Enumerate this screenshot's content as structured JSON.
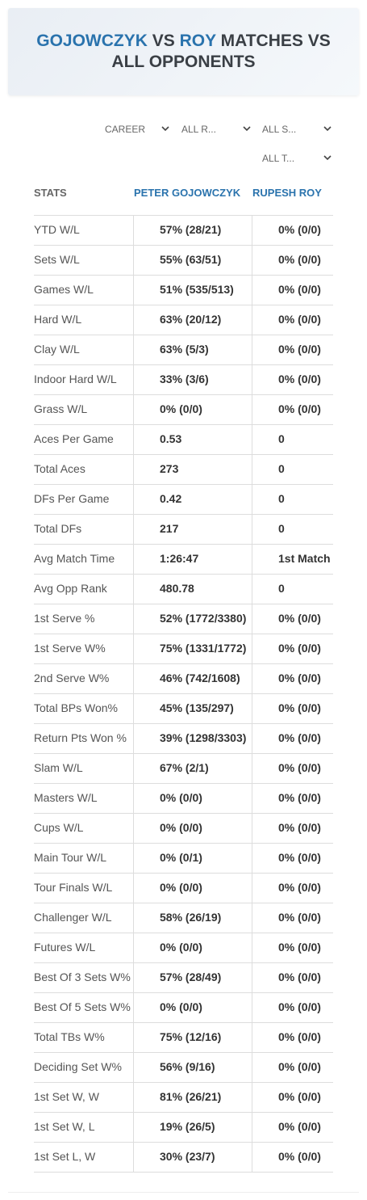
{
  "header": {
    "title": {
      "player1": "GOJOWCZYK",
      "vs": "VS",
      "player2": "ROY",
      "rest": "MATCHES VS ALL OPPONENTS"
    }
  },
  "filters": [
    "CAREER",
    "ALL R...",
    "ALL S...",
    "ALL T..."
  ],
  "table": {
    "columns": [
      "STATS",
      "PETER GOJOWCZYK",
      "RUPESH ROY"
    ],
    "rows": [
      [
        "YTD W/L",
        "57% (28/21)",
        "0% (0/0)"
      ],
      [
        "Sets W/L",
        "55% (63/51)",
        "0% (0/0)"
      ],
      [
        "Games W/L",
        "51% (535/513)",
        "0% (0/0)"
      ],
      [
        "Hard W/L",
        "63% (20/12)",
        "0% (0/0)"
      ],
      [
        "Clay W/L",
        "63% (5/3)",
        "0% (0/0)"
      ],
      [
        "Indoor Hard W/L",
        "33% (3/6)",
        "0% (0/0)"
      ],
      [
        "Grass W/L",
        "0% (0/0)",
        "0% (0/0)"
      ],
      [
        "Aces Per Game",
        "0.53",
        "0"
      ],
      [
        "Total Aces",
        "273",
        "0"
      ],
      [
        "DFs Per Game",
        "0.42",
        "0"
      ],
      [
        "Total DFs",
        "217",
        "0"
      ],
      [
        "Avg Match Time",
        "1:26:47",
        "1st Match"
      ],
      [
        "Avg Opp Rank",
        "480.78",
        "0"
      ],
      [
        "1st Serve %",
        "52% (1772/3380)",
        "0% (0/0)"
      ],
      [
        "1st Serve W%",
        "75% (1331/1772)",
        "0% (0/0)"
      ],
      [
        "2nd Serve W%",
        "46% (742/1608)",
        "0% (0/0)"
      ],
      [
        "Total BPs Won%",
        "45% (135/297)",
        "0% (0/0)"
      ],
      [
        "Return Pts Won %",
        "39% (1298/3303)",
        "0% (0/0)"
      ],
      [
        "Slam W/L",
        "67% (2/1)",
        "0% (0/0)"
      ],
      [
        "Masters W/L",
        "0% (0/0)",
        "0% (0/0)"
      ],
      [
        "Cups W/L",
        "0% (0/0)",
        "0% (0/0)"
      ],
      [
        "Main Tour W/L",
        "0% (0/1)",
        "0% (0/0)"
      ],
      [
        "Tour Finals W/L",
        "0% (0/0)",
        "0% (0/0)"
      ],
      [
        "Challenger W/L",
        "58% (26/19)",
        "0% (0/0)"
      ],
      [
        "Futures W/L",
        "0% (0/0)",
        "0% (0/0)"
      ],
      [
        "Best Of 3 Sets W%",
        "57% (28/49)",
        "0% (0/0)"
      ],
      [
        "Best Of 5 Sets W%",
        "0% (0/0)",
        "0% (0/0)"
      ],
      [
        "Total TBs W%",
        "75% (12/16)",
        "0% (0/0)"
      ],
      [
        "Deciding Set W%",
        "56% (9/16)",
        "0% (0/0)"
      ],
      [
        "1st Set W, W",
        "81% (26/21)",
        "0% (0/0)"
      ],
      [
        "1st Set W, L",
        "19% (26/5)",
        "0% (0/0)"
      ],
      [
        "1st Set L, W",
        "30% (23/7)",
        "0% (0/0)"
      ]
    ]
  }
}
